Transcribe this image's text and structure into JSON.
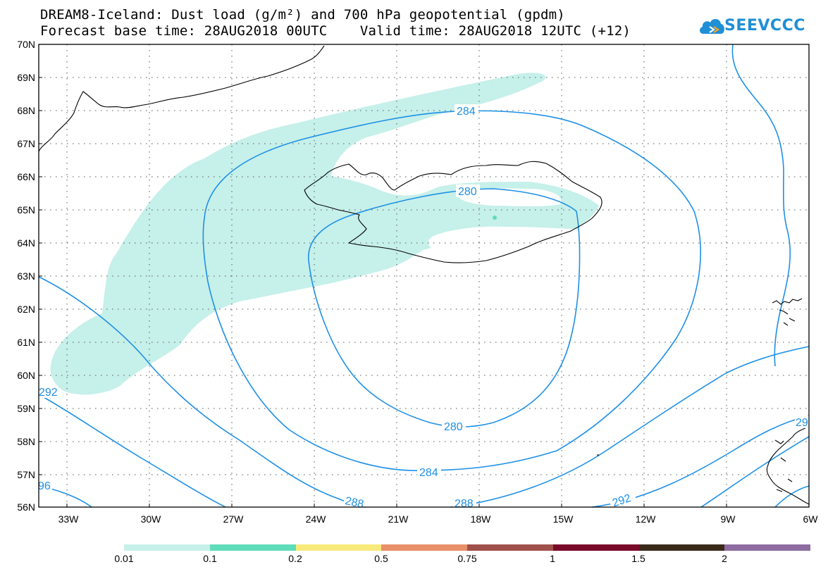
{
  "title": {
    "line1": "DREAM8-Iceland: Dust load (g/m²) and 700 hPa geopotential (gpdm)",
    "line2": "Forecast base time: 28AUG2018 00UTC    Valid time: 28AUG2018 12UTC (+12)"
  },
  "logo": {
    "text": "SEEVCCC",
    "icon": "cloud-icon"
  },
  "map": {
    "projection": "cylindrical",
    "lon_range": [
      -34.5,
      -6
    ],
    "lat_range": [
      56,
      70
    ],
    "grid": "dotted",
    "lat_labels": [
      "70N",
      "69N",
      "68N",
      "67N",
      "66N",
      "65N",
      "64N",
      "63N",
      "62N",
      "61N",
      "60N",
      "59N",
      "58N",
      "57N",
      "56N"
    ],
    "lon_labels": [
      "33W",
      "30W",
      "27W",
      "24W",
      "21W",
      "18W",
      "15W",
      "12W",
      "9W",
      "6W"
    ],
    "contour_color": "#1e90e6",
    "dust_fill_color": "#c6f0ea",
    "coastline_color": "#000000",
    "contour_labels": [
      "284",
      "280",
      "280",
      "284",
      "288",
      "288",
      "292",
      "292",
      "29",
      "96"
    ]
  },
  "legend": {
    "colors": [
      "#c6f0ea",
      "#5fdcb8",
      "#f7ea7a",
      "#e8906a",
      "#a0504a",
      "#7a0a2a",
      "#3a2a1a",
      "#8e6ca0"
    ],
    "labels": [
      "0.01",
      "0.1",
      "0.2",
      "0.5",
      "0.75",
      "1",
      "1.5",
      "2"
    ]
  }
}
